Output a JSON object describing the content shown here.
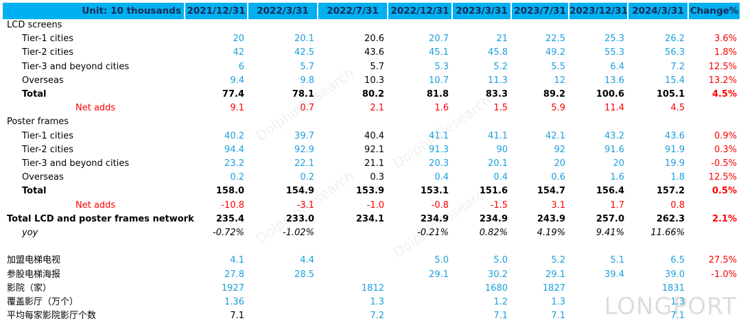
{
  "header": [
    "Unit: 10 thousands",
    "2021/12/31",
    "2022/3/31",
    "2022/7/31",
    "2022/12/31",
    "2023/3/31",
    "2023/7/31",
    "2023/12/31",
    "2024/3/31",
    "Change%"
  ],
  "rows": [
    {
      "label": "LCD screens",
      "values": [
        null,
        null,
        null,
        null,
        null,
        null,
        null,
        null,
        null
      ]
    },
    {
      "label": "Tier-1 cities",
      "values": [
        "20",
        "20.1",
        "20.6",
        "20.7",
        "21",
        "22.5",
        "25.3",
        "26.2",
        "3.6%"
      ]
    },
    {
      "label": "Tier-2 cities",
      "values": [
        "42",
        "42.5",
        "43.6",
        "45.1",
        "45.8",
        "49.2",
        "55.3",
        "56.3",
        "1.8%"
      ]
    },
    {
      "label": "Tier-3 and beyond cities",
      "values": [
        "6",
        "5.7",
        "5.7",
        "5.3",
        "5.2",
        "5.5",
        "6.4",
        "7.2",
        "12.5%"
      ]
    },
    {
      "label": "Overseas",
      "values": [
        "9.4",
        "9.8",
        "10.3",
        "10.7",
        "11.3",
        "12",
        "13.6",
        "15.4",
        "13.2%"
      ]
    },
    {
      "label": "Total",
      "values": [
        "77.4",
        "78.1",
        "80.2",
        "81.8",
        "83.3",
        "89.2",
        "100.6",
        "105.1",
        "4.5%"
      ]
    },
    {
      "label": "Net adds",
      "values": [
        "9.1",
        "0.7",
        "2.1",
        "1.6",
        "1.5",
        "5.9",
        "11.4",
        "4.5",
        null
      ]
    },
    {
      "label": "Poster frames",
      "values": [
        null,
        null,
        null,
        null,
        null,
        null,
        null,
        null,
        null
      ]
    },
    {
      "label": "Tier-1 cities",
      "values": [
        "40.2",
        "39.7",
        "40.4",
        "41.1",
        "41.1",
        "42.1",
        "43.2",
        "43.6",
        "0.9%"
      ]
    },
    {
      "label": "Tier-2 cities",
      "values": [
        "94.4",
        "92.9",
        "92.1",
        "91.3",
        "90",
        "92",
        "91.6",
        "91.9",
        "0.3%"
      ]
    },
    {
      "label": "Tier-3 and beyond cities",
      "values": [
        "23.2",
        "22.1",
        "21.1",
        "20.3",
        "20.1",
        "20",
        "20",
        "19.9",
        "-0.5%"
      ]
    },
    {
      "label": "Overseas",
      "values": [
        "0.2",
        "0.2",
        "0.3",
        "0.4",
        "0.4",
        "0.6",
        "1.6",
        "1.8",
        "12.5%"
      ]
    },
    {
      "label": "Total",
      "values": [
        "158.0",
        "154.9",
        "153.9",
        "153.1",
        "151.6",
        "154.7",
        "156.4",
        "157.2",
        "0.5%"
      ]
    },
    {
      "label": "Net adds",
      "values": [
        "-10.8",
        "-3.1",
        "-1.0",
        "-0.8",
        "-1.5",
        "3.1",
        "1.7",
        "0.8",
        null
      ]
    },
    {
      "label": "Total LCD and poster  frames network",
      "values": [
        "235.4",
        "233.0",
        "234.1",
        "234.9",
        "234.9",
        "243.9",
        "257.0",
        "262.3",
        "2.1%"
      ]
    },
    {
      "label": "yoy",
      "values": [
        "-0.72%",
        "-1.02%",
        null,
        "-0.21%",
        "0.82%",
        "4.19%",
        "9.41%",
        "11.66%",
        null
      ]
    },
    {
      "label": "加盟电梯电视",
      "values": [
        "4.1",
        "4.4",
        null,
        "5.0",
        "5.0",
        "5.2",
        "5.1",
        "6.5",
        "27.5%"
      ]
    },
    {
      "label": "参股电梯海报",
      "values": [
        "27.8",
        "28.5",
        null,
        "29.1",
        "30.2",
        "29.1",
        "39.4",
        "39.0",
        "-1.0%"
      ]
    },
    {
      "label": "影院（家）",
      "values": [
        "1927",
        null,
        "1812",
        null,
        "1680",
        "1827",
        null,
        "1831",
        null
      ]
    },
    {
      "label": "覆盖影厅（万个）",
      "values": [
        "1.36",
        null,
        "1.3",
        null,
        "1.2",
        "1.3",
        null,
        "1.3",
        null
      ]
    },
    {
      "label": "平均每家影院影厅个数",
      "values": [
        "7.1",
        null,
        "7.2",
        null,
        "7.1",
        "7.1",
        null,
        "7.1",
        null
      ]
    }
  ],
  "watermarks": [
    "DolphinResearch",
    "LONGPORT"
  ]
}
